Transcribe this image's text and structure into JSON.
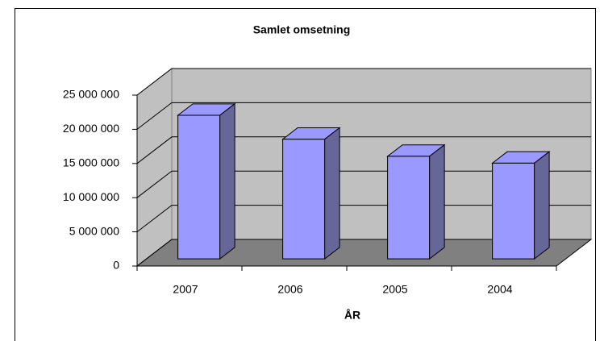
{
  "chart_data": {
    "type": "bar3d",
    "title": "Samlet omsetning",
    "x_label": "ÅR",
    "categories": [
      "2007",
      "2006",
      "2005",
      "2004"
    ],
    "values": [
      21000000,
      17500000,
      15000000,
      14000000
    ],
    "color": "#9999ff",
    "side_color": "#666699",
    "ylim": [
      0,
      25000000
    ],
    "yticks": [
      0,
      {
        "value": 5000000,
        "label": "5 000 000"
      },
      {
        "value": 10000000,
        "label": "10 000 000"
      },
      {
        "value": 15000000,
        "label": "15 000 000"
      },
      {
        "value": 20000000,
        "label": "20 000 000"
      },
      {
        "value": 25000000,
        "label": "25 000 000"
      }
    ],
    "grid": true
  }
}
